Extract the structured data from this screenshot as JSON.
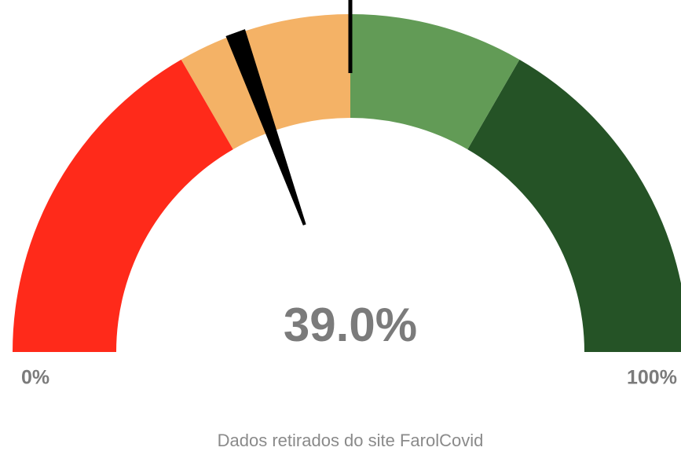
{
  "chart_data": {
    "type": "gauge",
    "value": 39,
    "value_label": "39.0%",
    "range": [
      0,
      100
    ],
    "range_labels": [
      "0%",
      "100%"
    ],
    "band_edges": [
      33.3,
      50,
      66.7
    ],
    "band_colors": [
      "#ff2a1a",
      "#f4b266",
      "#629b56",
      "#255326"
    ],
    "marker": 50,
    "needle_color": "#000000",
    "caption": "Dados retirados do site FarolCovid"
  }
}
